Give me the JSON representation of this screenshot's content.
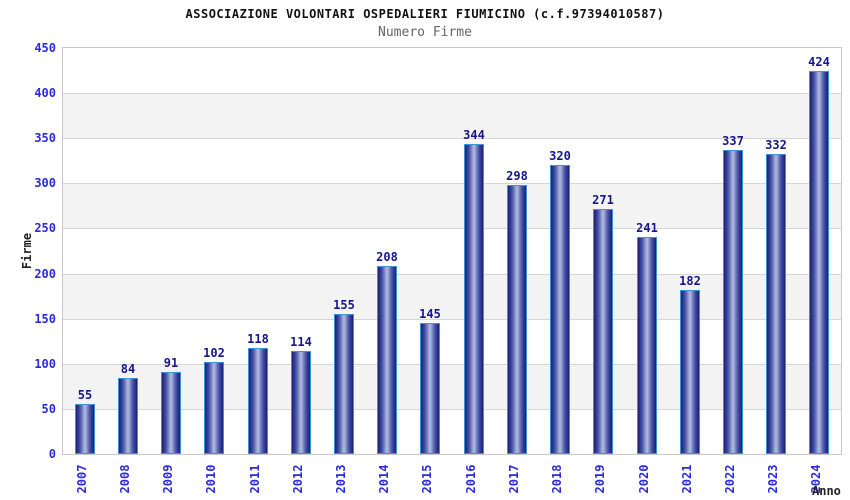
{
  "title": "ASSOCIAZIONE VOLONTARI OSPEDALIERI FIUMICINO (c.f.97394010587)",
  "subtitle": "Numero Firme",
  "chart_data": {
    "type": "bar",
    "title": "ASSOCIAZIONE VOLONTARI OSPEDALIERI FIUMICINO (c.f.97394010587)",
    "subtitle": "Numero Firme",
    "xlabel": "Anno",
    "ylabel": "Firme",
    "categories": [
      "2007",
      "2008",
      "2009",
      "2010",
      "2011",
      "2012",
      "2013",
      "2014",
      "2015",
      "2016",
      "2017",
      "2018",
      "2019",
      "2020",
      "2021",
      "2022",
      "2023",
      "2024"
    ],
    "values": [
      55,
      84,
      91,
      102,
      118,
      114,
      155,
      208,
      145,
      344,
      298,
      320,
      271,
      241,
      182,
      337,
      332,
      424
    ],
    "ylim": [
      0,
      450
    ],
    "ytick_step": 50,
    "yticks": [
      0,
      50,
      100,
      150,
      200,
      250,
      300,
      350,
      400,
      450
    ],
    "grid": true,
    "bands": "alternating white/gray horizontal bands every 50 units",
    "legend_position": "none",
    "bar_label_position": "above"
  },
  "colors": {
    "background": "#ffffff",
    "title": "#111111",
    "subtitle": "#666666",
    "axis_tick_blue": "#2a2ae0",
    "value_label_navy": "#16168c",
    "axis_title": "#222222",
    "plot_border": "#c9c9c9",
    "grid_line": "#d6d6d6",
    "band_gray": "#f3f3f3",
    "band_white": "#ffffff",
    "bar_border_blue": "#3e92d8",
    "bar_gradient_dark": "#1a2070",
    "bar_gradient_mid": "#4a55a8",
    "bar_gradient_light": "#b4bce4"
  }
}
